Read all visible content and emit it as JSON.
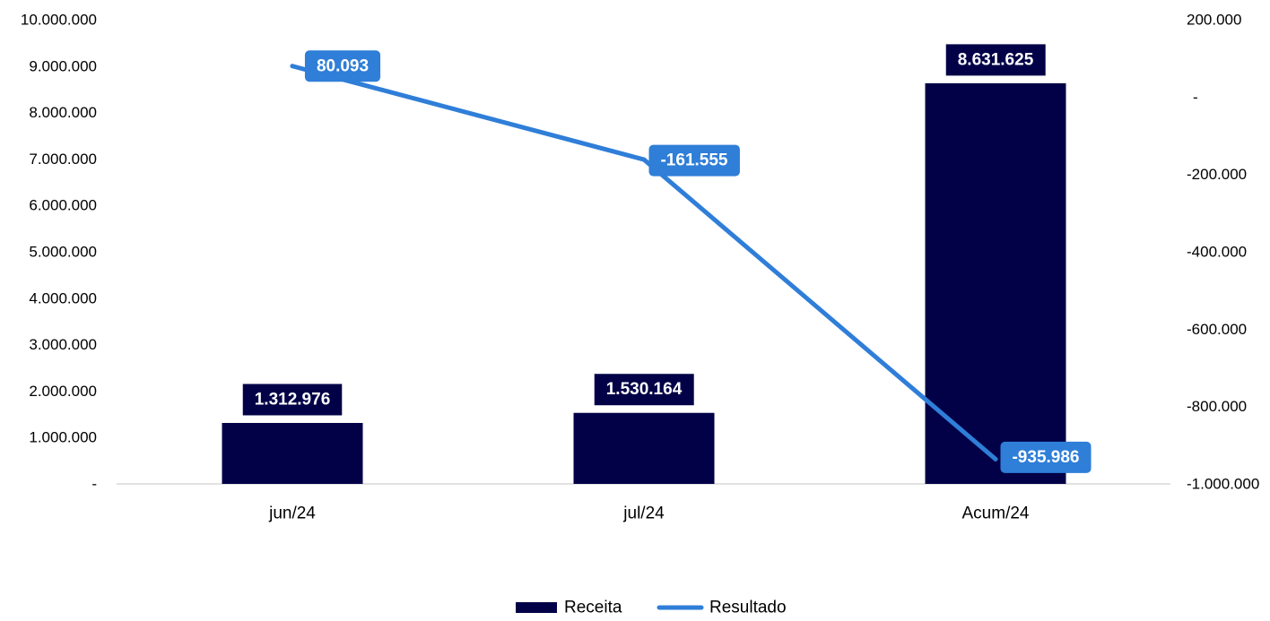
{
  "chart_data": {
    "type": "bar",
    "categories": [
      "jun/24",
      "jul/24",
      "Acum/24"
    ],
    "series": [
      {
        "name": "Receita",
        "type": "bar",
        "axis": "left",
        "values": [
          1312976,
          1530164,
          8631625
        ],
        "labels": [
          "1.312.976",
          "1.530.164",
          "8.631.625"
        ]
      },
      {
        "name": "Resultado",
        "type": "line",
        "axis": "right",
        "values": [
          80093,
          -161555,
          -935986
        ],
        "labels": [
          "80.093",
          "-161.555",
          "-935.986"
        ]
      }
    ],
    "y_left": {
      "ylim": [
        0,
        10000000
      ],
      "ticks": [
        0,
        1000000,
        2000000,
        3000000,
        4000000,
        5000000,
        6000000,
        7000000,
        8000000,
        9000000,
        10000000
      ],
      "tick_labels": [
        "-",
        "1.000.000",
        "2.000.000",
        "3.000.000",
        "4.000.000",
        "5.000.000",
        "6.000.000",
        "7.000.000",
        "8.000.000",
        "9.000.000",
        "10.000.000"
      ]
    },
    "y_right": {
      "ylim": [
        -1000000,
        200000
      ],
      "ticks": [
        -1000000,
        -800000,
        -600000,
        -400000,
        -200000,
        0,
        200000
      ],
      "tick_labels": [
        "-1.000.000",
        "-800.000",
        "-600.000",
        "-400.000",
        "-200.000",
        "-",
        "200.000"
      ]
    },
    "grid": false,
    "legend": "bottom-center",
    "colors": {
      "bar": "#020147",
      "line": "#2F7ED8",
      "axis": "#D9D9D9"
    }
  }
}
